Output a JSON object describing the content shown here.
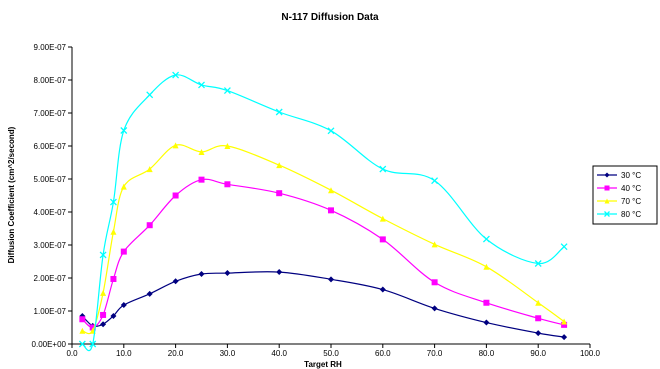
{
  "chart_data": {
    "type": "line",
    "title": "N-117 Diffusion Data",
    "xlabel": "Target RH",
    "ylabel": "Diffusion Coefficient (cm^2/second)",
    "xlim": [
      0,
      100
    ],
    "ylim": [
      0,
      9e-07
    ],
    "x_ticks": [
      "0.0",
      "10.0",
      "20.0",
      "30.0",
      "40.0",
      "50.0",
      "60.0",
      "70.0",
      "80.0",
      "90.0",
      "100.0"
    ],
    "y_ticks": [
      "0.00E+00",
      "1.00E-07",
      "2.00E-07",
      "3.00E-07",
      "4.00E-07",
      "5.00E-07",
      "6.00E-07",
      "7.00E-07",
      "8.00E-07",
      "9.00E-07"
    ],
    "grid": false,
    "legend_position": "right",
    "series": [
      {
        "name": "30 °C",
        "color": "#000080",
        "marker": "diamond",
        "x": [
          2,
          4,
          6,
          8,
          10,
          15,
          20,
          25,
          30,
          40,
          50,
          60,
          70,
          80,
          90,
          95
        ],
        "y": [
          8.5e-08,
          5.5e-08,
          6e-08,
          8.5e-08,
          1.18e-07,
          1.52e-07,
          1.9e-07,
          2.12e-07,
          2.15e-07,
          2.18e-07,
          1.96e-07,
          1.65e-07,
          1.08e-07,
          6.5e-08,
          3.3e-08,
          2.1e-08
        ]
      },
      {
        "name": "40 °C",
        "color": "#ff00ff",
        "marker": "square",
        "x": [
          2,
          4,
          6,
          8,
          10,
          15,
          20,
          25,
          30,
          40,
          50,
          60,
          70,
          80,
          90,
          95
        ],
        "y": [
          7.5e-08,
          5e-08,
          8.8e-08,
          1.97e-07,
          2.8e-07,
          3.6e-07,
          4.5e-07,
          4.98e-07,
          4.84e-07,
          4.57e-07,
          4.05e-07,
          3.17e-07,
          1.87e-07,
          1.25e-07,
          7.8e-08,
          5.8e-08
        ]
      },
      {
        "name": "70 °C",
        "color": "#ffff00",
        "marker": "triangle",
        "x": [
          2,
          4,
          6,
          8,
          10,
          15,
          20,
          25,
          30,
          40,
          50,
          60,
          70,
          80,
          90,
          95
        ],
        "y": [
          4e-08,
          4e-08,
          1.55e-07,
          3.4e-07,
          4.77e-07,
          5.3e-07,
          6.02e-07,
          5.82e-07,
          6e-07,
          5.42e-07,
          4.66e-07,
          3.8e-07,
          3.02e-07,
          2.34e-07,
          1.25e-07,
          6.8e-08
        ]
      },
      {
        "name": "80 °C",
        "color": "#00ffff",
        "marker": "x",
        "x": [
          2,
          4,
          6,
          8,
          10,
          15,
          20,
          25,
          30,
          40,
          50,
          60,
          70,
          80,
          90,
          95
        ],
        "y": [
          0,
          0,
          2.7e-07,
          4.3e-07,
          6.47e-07,
          7.55e-07,
          8.15e-07,
          7.85e-07,
          7.68e-07,
          7.03e-07,
          6.46e-07,
          5.3e-07,
          4.95e-07,
          3.18e-07,
          2.44e-07,
          2.95e-07
        ]
      }
    ]
  }
}
